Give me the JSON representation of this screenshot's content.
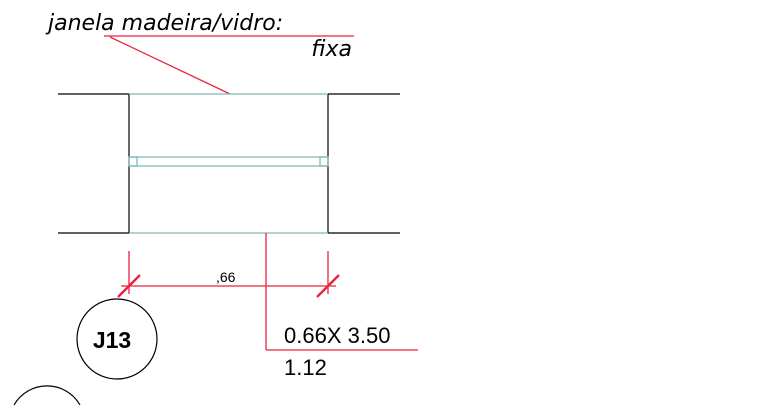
{
  "note": {
    "line1": "janela  madeira/vidro:",
    "line2": "fixa"
  },
  "dimension": {
    "width_label": ",66"
  },
  "window_tag": {
    "id": "J13"
  },
  "window_spec": {
    "size": "0.66X 3.50",
    "sill": "1.12"
  },
  "colors": {
    "wall": "#000000",
    "glass": "#7fb8b8",
    "annotation": "#e8243c",
    "text": "#000000"
  }
}
